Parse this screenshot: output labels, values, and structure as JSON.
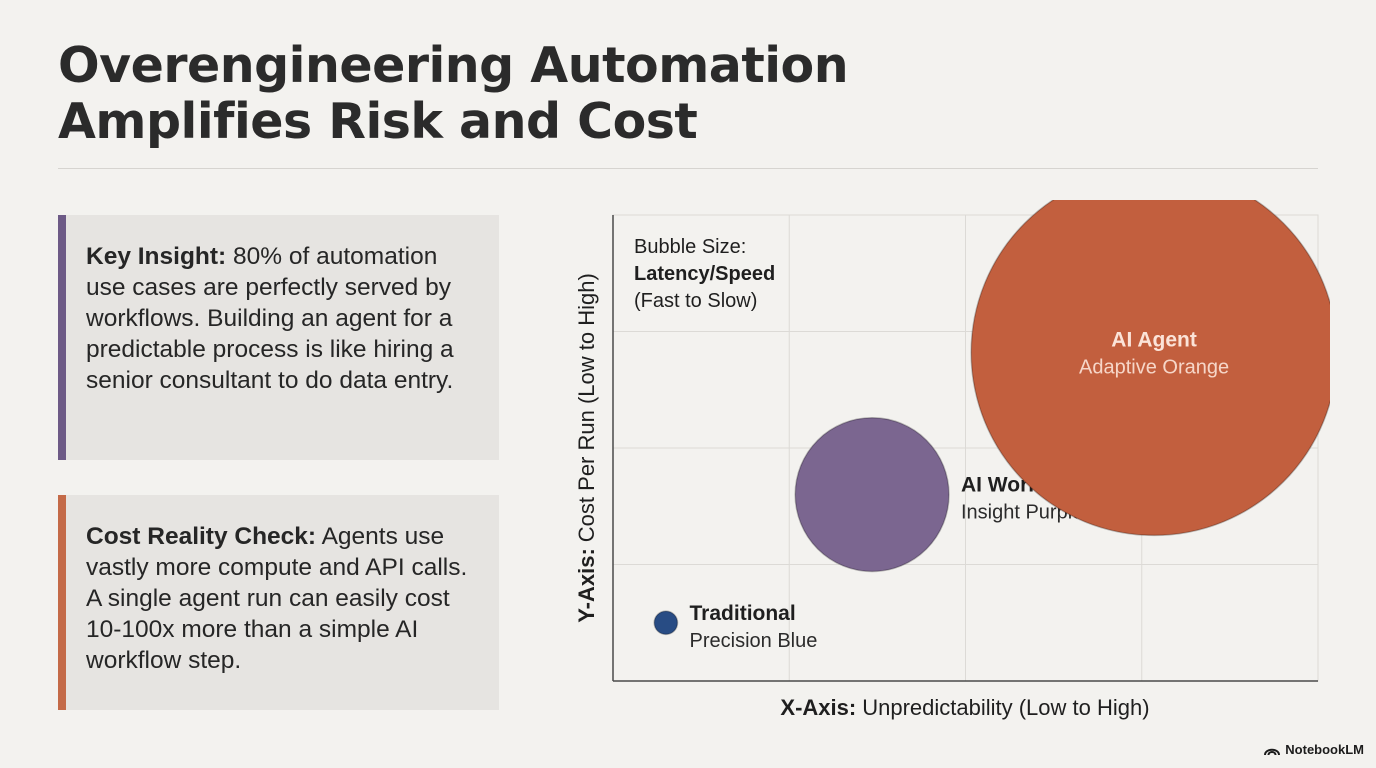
{
  "title": {
    "line1": "Overengineering Automation",
    "line2": "Amplifies Risk and Cost"
  },
  "cards": [
    {
      "lead": "Key Insight:",
      "body": " 80% of automation use cases are perfectly served by workflows. Building an agent for a predictable process is like hiring a senior consultant to do data entry.",
      "accent": "#6d5a86"
    },
    {
      "lead": "Cost Reality Check:",
      "body": " Agents use vastly more compute and API calls. A single agent run can easily cost 10-100x more than a simple AI workflow step.",
      "accent": "#c46a48"
    }
  ],
  "chart_data": {
    "type": "scatter",
    "xlabel_bold": "X-Axis:",
    "xlabel": "Unpredictability (Low to High)",
    "ylabel_bold": "Y-Axis:",
    "ylabel": "Cost Per Run (Low to High)",
    "grid": true,
    "xlim": [
      0,
      4
    ],
    "ylim": [
      0,
      4
    ],
    "size_legend": {
      "line1": "Bubble Size:",
      "line2": "Latency/Speed",
      "line3": "(Fast to Slow)",
      "placement": "top-left"
    },
    "series": [
      {
        "name": "Traditional",
        "subtitle": "Precision Blue",
        "x": 0.3,
        "y": 0.5,
        "size": 0.1,
        "color": "#284c84",
        "label_side": "right"
      },
      {
        "name": "AI Workflow",
        "subtitle": "Insight Purple",
        "x": 1.47,
        "y": 1.6,
        "size": 0.66,
        "color": "#7b6690",
        "label_side": "right"
      },
      {
        "name": "AI Agent",
        "subtitle": "Adaptive Orange",
        "x": 3.07,
        "y": 2.82,
        "size": 1.57,
        "color": "#c25f3e",
        "label_side": "inside"
      }
    ]
  },
  "brand": "NotebookLM"
}
